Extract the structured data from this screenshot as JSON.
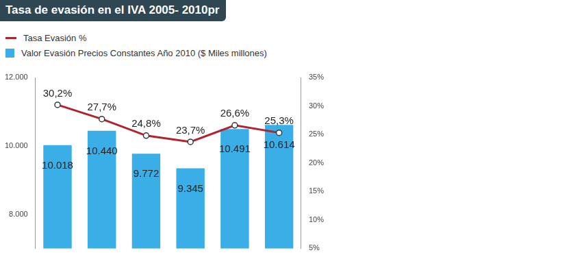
{
  "chart_data": {
    "type": "bar",
    "title": "Tasa de evasión en el IVA 2005- 2010pr",
    "categories": [
      null,
      null,
      null,
      null,
      null,
      null
    ],
    "series": [
      {
        "name": "Tasa Evasión %",
        "type": "line",
        "axis": "y2",
        "color": "#b3232b",
        "marker": "circle",
        "values": [
          30.2,
          27.7,
          24.8,
          23.7,
          26.6,
          25.3
        ],
        "value_labels": [
          "30,2%",
          "27,7%",
          "24,8%",
          "23,7%",
          "26,6%",
          "25,3%"
        ]
      },
      {
        "name": "Valor Evasión Precios Constantes Año 2010 ($ Miles millones)",
        "type": "bar",
        "color": "#3aaee6",
        "values": [
          10018,
          10440,
          9772,
          9345,
          10491,
          10614
        ],
        "value_labels": [
          "10.018",
          "10.440",
          "9.772",
          "9.345",
          "10.491",
          "10.614"
        ]
      }
    ],
    "ylim": [
      7000,
      12000
    ],
    "yticks": [
      {
        "value": 8000,
        "label": "8.000"
      },
      {
        "value": 10000,
        "label": "10.000"
      },
      {
        "value": 12000,
        "label": "12.000"
      }
    ],
    "y2lim": [
      5,
      35
    ],
    "y2ticks": [
      {
        "value": 5,
        "label": "5%"
      },
      {
        "value": 10,
        "label": "10%"
      },
      {
        "value": 15,
        "label": "15%"
      },
      {
        "value": 20,
        "label": "20%"
      },
      {
        "value": 25,
        "label": "25%"
      },
      {
        "value": 30,
        "label": "30%"
      },
      {
        "value": 35,
        "label": "35%"
      }
    ],
    "grid": false,
    "legend": "top-left",
    "data_labels": true
  }
}
